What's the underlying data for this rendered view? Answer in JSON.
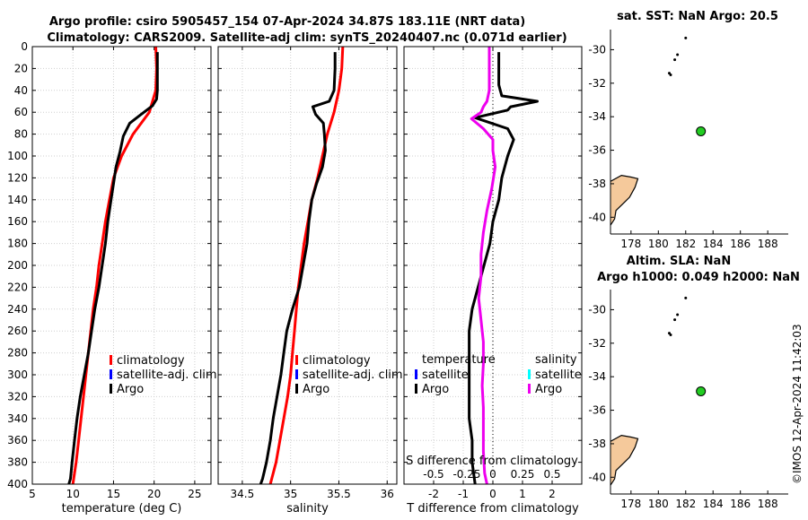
{
  "title": {
    "line1": "Argo profile: csiro 5905457_154 07-Apr-2024 34.87S 183.11E (NRT data)",
    "line2": "Climatology: CARS2009. Satellite-adj clim: synTS_20240407.nc (0.071d earlier)"
  },
  "colors": {
    "climatology": "#ff0000",
    "satellite_adj": "#0000ff",
    "argo": "#000000",
    "salinity_diff": "#ee00ee",
    "satellite_salinity": "#00ffff",
    "land": "#f5c99b",
    "float_marker": "#22cc22"
  },
  "chart_data": [
    {
      "type": "line",
      "id": "temperature",
      "xlabel": "temperature (deg C)",
      "ylabel": "",
      "xlim": [
        5,
        27
      ],
      "ylim": [
        0,
        400
      ],
      "y_reversed": true,
      "xticks": [
        "5",
        "10",
        "15",
        "20",
        "25"
      ],
      "xtick_values": [
        5,
        10,
        15,
        20,
        25
      ],
      "yticks": [
        "0",
        "20",
        "40",
        "60",
        "80",
        "100",
        "120",
        "140",
        "160",
        "180",
        "200",
        "220",
        "240",
        "260",
        "280",
        "300",
        "320",
        "340",
        "360",
        "380",
        "400"
      ],
      "ytick_values": [
        0,
        20,
        40,
        60,
        80,
        100,
        120,
        140,
        160,
        180,
        200,
        220,
        240,
        260,
        280,
        300,
        320,
        340,
        360,
        380,
        400
      ],
      "legend": [
        "climatology",
        "satellite-adj. clim",
        "Argo"
      ],
      "series": [
        {
          "name": "climatology",
          "x": [
            20.2,
            20.3,
            20.2,
            19.4,
            17.4,
            16.0,
            15.0,
            14.5,
            14.0,
            13.6,
            13.2,
            12.9,
            12.5,
            12.2,
            11.9,
            11.6,
            11.3,
            11.0,
            10.7,
            10.4,
            10.0
          ],
          "depth": [
            0,
            20,
            40,
            60,
            80,
            100,
            120,
            140,
            160,
            180,
            200,
            220,
            240,
            260,
            280,
            300,
            320,
            340,
            360,
            380,
            400
          ]
        },
        {
          "name": "Argo",
          "x": [
            20.4,
            20.4,
            20.4,
            20.3,
            19.8,
            18.4,
            17.0,
            16.2,
            15.8,
            15.3,
            15.0,
            14.7,
            14.3,
            14.0,
            13.6,
            13.2,
            12.7,
            12.3,
            11.9,
            11.4,
            10.9,
            10.5,
            10.2,
            9.9,
            9.7,
            9.5
          ],
          "depth": [
            5,
            20,
            40,
            48,
            54,
            62,
            70,
            82,
            96,
            110,
            125,
            140,
            160,
            180,
            200,
            220,
            240,
            260,
            280,
            300,
            320,
            340,
            360,
            380,
            395,
            400
          ]
        }
      ]
    },
    {
      "type": "line",
      "id": "salinity",
      "xlabel": "salinity",
      "ylabel": "",
      "xlim": [
        34.25,
        36.1
      ],
      "ylim": [
        0,
        400
      ],
      "y_reversed": true,
      "xticks": [
        "34.5",
        "35",
        "35.5",
        "36"
      ],
      "xtick_values": [
        34.5,
        35,
        35.5,
        36
      ],
      "legend": [
        "climatology",
        "satellite-adj. clim",
        "Argo"
      ],
      "series": [
        {
          "name": "climatology",
          "x": [
            35.54,
            35.53,
            35.5,
            35.45,
            35.38,
            35.33,
            35.28,
            35.22,
            35.18,
            35.14,
            35.11,
            35.08,
            35.06,
            35.04,
            35.02,
            35.0,
            34.97,
            34.93,
            34.89,
            34.85,
            34.79
          ],
          "depth": [
            0,
            20,
            40,
            60,
            80,
            100,
            120,
            140,
            160,
            180,
            200,
            220,
            240,
            260,
            280,
            300,
            320,
            340,
            360,
            380,
            400
          ]
        },
        {
          "name": "Argo",
          "x": [
            35.46,
            35.46,
            35.45,
            35.4,
            35.23,
            35.26,
            35.34,
            35.35,
            35.36,
            35.33,
            35.27,
            35.22,
            35.19,
            35.17,
            35.13,
            35.09,
            35.02,
            34.96,
            34.93,
            34.9,
            34.86,
            34.82,
            34.79,
            34.75,
            34.71,
            34.69
          ],
          "depth": [
            5,
            20,
            40,
            50,
            55,
            62,
            70,
            80,
            95,
            110,
            125,
            140,
            160,
            180,
            200,
            220,
            240,
            260,
            280,
            300,
            320,
            340,
            360,
            380,
            395,
            400
          ]
        }
      ]
    },
    {
      "type": "line",
      "id": "difference",
      "xlabel": "T difference from climatology",
      "xlabel2": "S difference from climatology",
      "xlim": [
        -3,
        3
      ],
      "ylim": [
        0,
        400
      ],
      "y_reversed": true,
      "xticks": [
        "-2",
        "-1",
        "0",
        "1",
        "2"
      ],
      "xtick_values": [
        -2,
        -1,
        0,
        1,
        2
      ],
      "xticks2": [
        "-0.5",
        "-0.25",
        "0",
        "0.25",
        "0.5"
      ],
      "xtick2_values": [
        -0.5,
        -0.25,
        0,
        0.25,
        0.5
      ],
      "legend_t_title": "temperature",
      "legend_s_title": "salinity",
      "legend_t": [
        "satellite",
        "Argo"
      ],
      "legend_s": [
        "satellite",
        "Argo"
      ],
      "series": [
        {
          "name": "T diff Argo",
          "x": [
            0.2,
            0.2,
            0.2,
            0.3,
            1.5,
            0.6,
            0.5,
            -0.6,
            0.5,
            0.7,
            0.5,
            0.3,
            0.2,
            0.0,
            -0.1,
            -0.3,
            -0.5,
            -0.7,
            -0.8,
            -0.8,
            -0.8,
            -0.8,
            -0.8,
            -0.7,
            -0.7,
            -0.6
          ],
          "depth": [
            5,
            20,
            35,
            45,
            50,
            55,
            58,
            65,
            75,
            85,
            100,
            120,
            140,
            160,
            180,
            200,
            220,
            240,
            260,
            280,
            300,
            320,
            340,
            360,
            380,
            400
          ]
        },
        {
          "name": "S diff Argo",
          "x": [
            -0.03,
            -0.03,
            -0.03,
            -0.05,
            -0.08,
            -0.1,
            -0.18,
            -0.08,
            0.0,
            0.0,
            0.02,
            -0.01,
            -0.05,
            -0.08,
            -0.1,
            -0.1,
            -0.12,
            -0.1,
            -0.08,
            -0.08,
            -0.09,
            -0.08,
            -0.08,
            -0.08,
            -0.07,
            -0.05
          ],
          "depth": [
            0,
            20,
            40,
            50,
            55,
            60,
            66,
            75,
            85,
            95,
            110,
            130,
            150,
            170,
            190,
            210,
            230,
            250,
            270,
            290,
            310,
            330,
            350,
            370,
            390,
            400
          ]
        }
      ]
    },
    {
      "type": "scatter",
      "id": "map_sst",
      "title": "sat. SST: NaN Argo: 20.5",
      "xlim": [
        176.5,
        189.5
      ],
      "ylim": [
        -41,
        -28.8
      ],
      "xticks": [
        "178",
        "180",
        "182",
        "184",
        "186",
        "188"
      ],
      "xtick_values": [
        178,
        180,
        182,
        184,
        186,
        188
      ],
      "yticks": [
        "-30",
        "-32",
        "-34",
        "-36",
        "-38",
        "-40"
      ],
      "ytick_values": [
        -30,
        -32,
        -34,
        -36,
        -38,
        -40
      ],
      "float_position": {
        "lon": 183.11,
        "lat": -34.87
      },
      "islands": [
        {
          "lon": 182.0,
          "lat": -29.3
        },
        {
          "lon": 181.4,
          "lat": -30.3
        },
        {
          "lon": 181.2,
          "lat": -30.6
        },
        {
          "lon": 180.8,
          "lat": -31.4
        },
        {
          "lon": 180.9,
          "lat": -31.5
        }
      ]
    },
    {
      "type": "scatter",
      "id": "map_sla",
      "title_line1": "Altim. SLA: NaN",
      "title_line2": "Argo h1000: 0.049 h2000: NaN",
      "xlim": [
        176.5,
        189.5
      ],
      "ylim": [
        -41,
        -28.8
      ],
      "xticks": [
        "178",
        "180",
        "182",
        "184",
        "186",
        "188"
      ],
      "xtick_values": [
        178,
        180,
        182,
        184,
        186,
        188
      ],
      "yticks": [
        "-30",
        "-32",
        "-34",
        "-36",
        "-38",
        "-40"
      ],
      "ytick_values": [
        -30,
        -32,
        -34,
        -36,
        -38,
        -40
      ],
      "float_position": {
        "lon": 183.11,
        "lat": -34.87
      },
      "islands": [
        {
          "lon": 182.0,
          "lat": -29.3
        },
        {
          "lon": 181.4,
          "lat": -30.3
        },
        {
          "lon": 181.2,
          "lat": -30.6
        },
        {
          "lon": 180.8,
          "lat": -31.4
        },
        {
          "lon": 180.9,
          "lat": -31.5
        }
      ]
    }
  ],
  "watermark": "©IMOS 12-Apr-2024 11:42:03"
}
